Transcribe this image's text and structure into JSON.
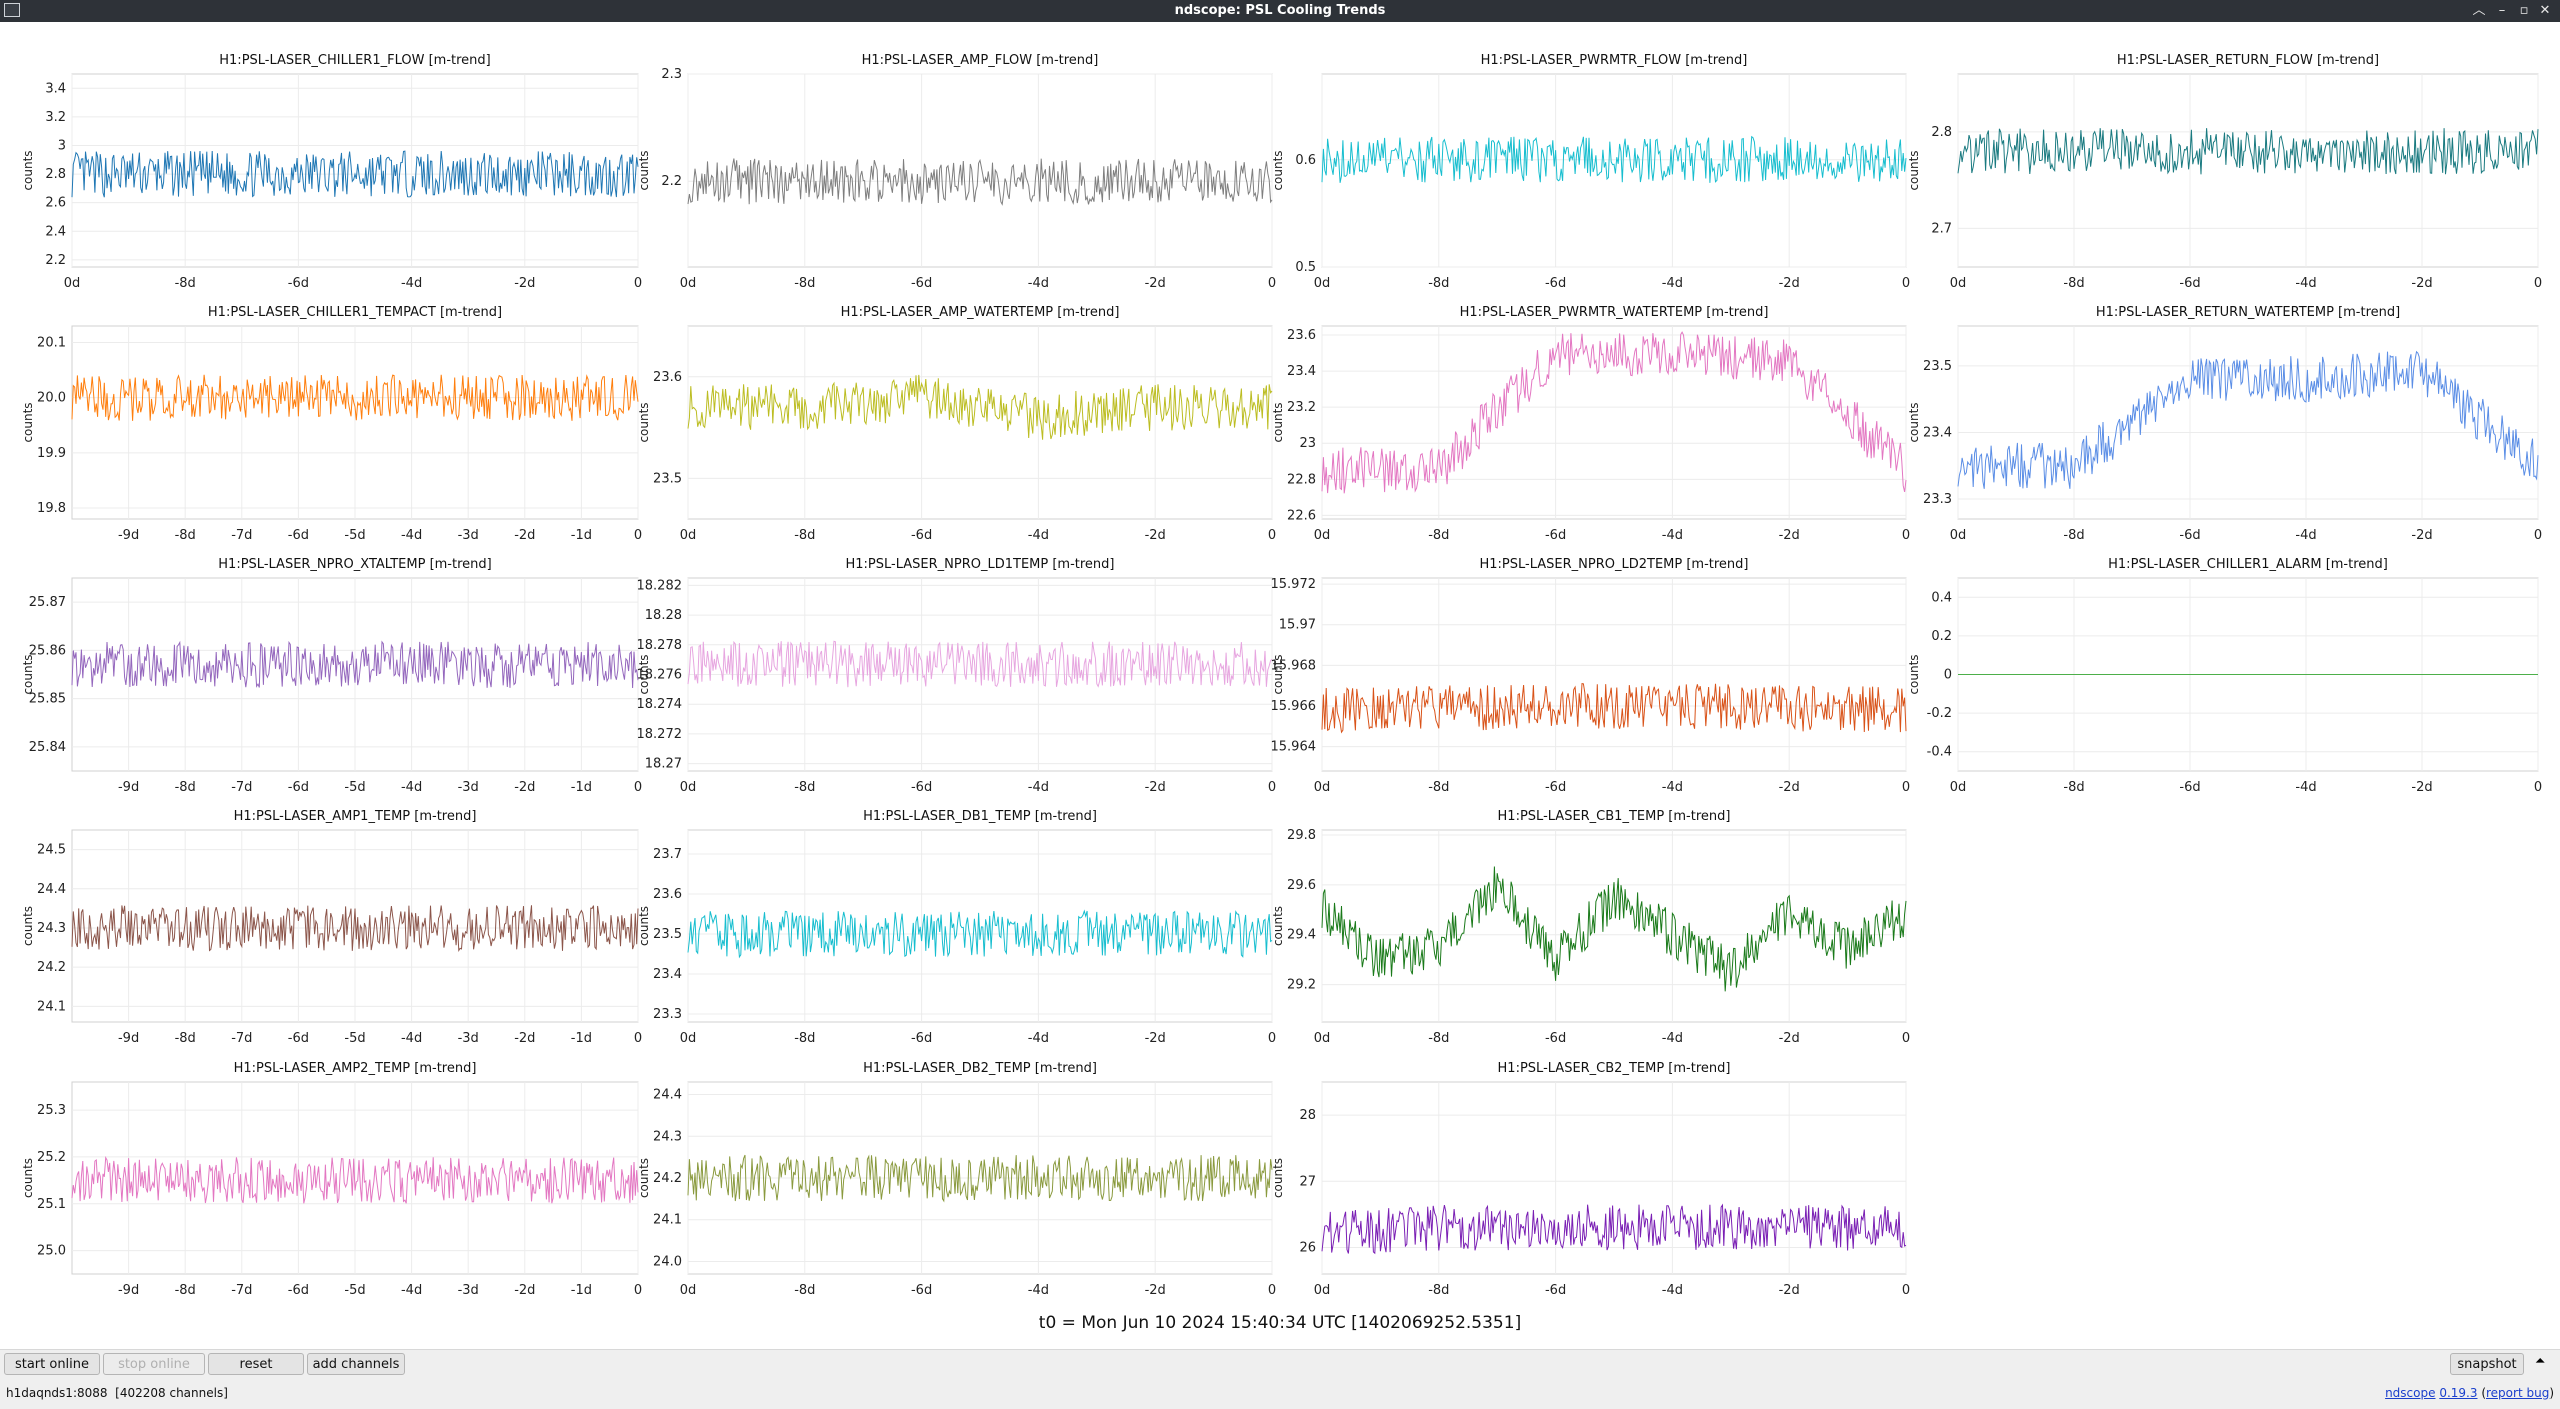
{
  "window": {
    "title": "ndscope: PSL Cooling Trends"
  },
  "footer": {
    "t0_text": "t0 = Mon Jun 10 2024 15:40:34 UTC [1402069252.5351]"
  },
  "toolbar": {
    "start_online": "start online",
    "stop_online": "stop online",
    "reset": "reset",
    "add_channels": "add channels",
    "snapshot": "snapshot"
  },
  "status": {
    "server": "h1daqnds1:8088",
    "channels": "[402208 channels]",
    "app_name": "ndscope",
    "version": "0.19.3",
    "report_bug": "report bug"
  },
  "chart_data": [
    {
      "type": "line",
      "title": "H1:PSL-LASER_CHILLER1_FLOW [m-trend]",
      "ylabel": "counts",
      "color": "#1f77b4",
      "x_ticks": [
        "0d",
        "-8d",
        "-6d",
        "-4d",
        "-2d",
        "0"
      ],
      "y_ticks": [
        "3.4",
        "3.2",
        "3",
        "2.8",
        "2.6",
        "2.4",
        "2.2"
      ],
      "ylim": [
        2.15,
        3.5
      ],
      "x": [
        -10,
        -8,
        -6,
        -4,
        -2,
        0
      ],
      "series": [
        {
          "values": [
            2.8,
            2.8,
            2.8,
            2.8,
            2.8,
            2.8
          ]
        }
      ]
    },
    {
      "type": "line",
      "title": "H1:PSL-LASER_AMP_FLOW [m-trend]",
      "ylabel": "counts",
      "color": "#7f7f7f",
      "x_ticks": [
        "0d",
        "-8d",
        "-6d",
        "-4d",
        "-2d",
        "0"
      ],
      "y_ticks": [
        "2.3",
        "2.2"
      ],
      "ylim": [
        2.12,
        2.3
      ],
      "x": [
        -10,
        -8,
        -6,
        -4,
        -2,
        0
      ],
      "series": [
        {
          "values": [
            2.2,
            2.2,
            2.2,
            2.2,
            2.2,
            2.2
          ]
        }
      ]
    },
    {
      "type": "line",
      "title": "H1:PSL-LASER_PWRMTR_FLOW [m-trend]",
      "ylabel": "counts",
      "color": "#17becf",
      "x_ticks": [
        "0d",
        "-8d",
        "-6d",
        "-4d",
        "-2d",
        "0"
      ],
      "y_ticks": [
        "0.6",
        "0.5"
      ],
      "ylim": [
        0.5,
        0.68
      ],
      "x": [
        -10,
        -8,
        -6,
        -4,
        -2,
        0
      ],
      "series": [
        {
          "values": [
            0.6,
            0.6,
            0.6,
            0.6,
            0.6,
            0.6
          ]
        }
      ]
    },
    {
      "type": "line",
      "title": "H1:PSL-LASER_RETURN_FLOW [m-trend]",
      "ylabel": "counts",
      "color": "#1a7a80",
      "x_ticks": [
        "0d",
        "-8d",
        "-6d",
        "-4d",
        "-2d",
        "0"
      ],
      "y_ticks": [
        "2.8",
        "2.7"
      ],
      "ylim": [
        2.66,
        2.86
      ],
      "x": [
        -10,
        -8,
        -6,
        -4,
        -2,
        0
      ],
      "series": [
        {
          "values": [
            2.78,
            2.78,
            2.78,
            2.78,
            2.78,
            2.78
          ]
        }
      ]
    },
    {
      "type": "line",
      "title": "H1:PSL-LASER_CHILLER1_TEMPACT [m-trend]",
      "ylabel": "counts",
      "color": "#ff7f0e",
      "x_ticks": [
        "-9d",
        "-8d",
        "-7d",
        "-6d",
        "-5d",
        "-4d",
        "-3d",
        "-2d",
        "-1d",
        "0"
      ],
      "y_ticks": [
        "20.1",
        "20.0",
        "19.9",
        "19.8"
      ],
      "ylim": [
        19.78,
        20.13
      ],
      "x": [
        -10,
        -8,
        -6,
        -4,
        -2,
        0
      ],
      "series": [
        {
          "values": [
            20.0,
            20.0,
            20.0,
            20.0,
            20.0,
            20.0
          ]
        }
      ]
    },
    {
      "type": "line",
      "title": "H1:PSL-LASER_AMP_WATERTEMP [m-trend]",
      "ylabel": "counts",
      "color": "#bcbd22",
      "x_ticks": [
        "0d",
        "-8d",
        "-6d",
        "-4d",
        "-2d",
        "0"
      ],
      "y_ticks": [
        "23.6",
        "23.5"
      ],
      "ylim": [
        23.46,
        23.65
      ],
      "x": [
        -10,
        -8,
        -6,
        -4,
        -2,
        0
      ],
      "series": [
        {
          "values": [
            23.57,
            23.57,
            23.58,
            23.56,
            23.57,
            23.57
          ]
        }
      ]
    },
    {
      "type": "line",
      "title": "H1:PSL-LASER_PWRMTR_WATERTEMP [m-trend]",
      "ylabel": "counts",
      "color": "#e377c2",
      "x_ticks": [
        "0d",
        "-8d",
        "-6d",
        "-4d",
        "-2d",
        "0"
      ],
      "y_ticks": [
        "23.6",
        "23.4",
        "23.2",
        "23",
        "22.8",
        "22.6"
      ],
      "ylim": [
        22.58,
        23.65
      ],
      "x": [
        -10,
        -8,
        -6,
        -4,
        -2,
        0
      ],
      "series": [
        {
          "values": [
            22.85,
            22.85,
            23.5,
            23.5,
            23.45,
            22.85
          ]
        }
      ]
    },
    {
      "type": "line",
      "title": "H1:PSL-LASER_RETURN_WATERTEMP [m-trend]",
      "ylabel": "counts",
      "color": "#5b8ee6",
      "x_ticks": [
        "0d",
        "-8d",
        "-6d",
        "-4d",
        "-2d",
        "0"
      ],
      "y_ticks": [
        "23.5",
        "23.4",
        "23.3"
      ],
      "ylim": [
        23.27,
        23.56
      ],
      "x": [
        -10,
        -8,
        -6,
        -4,
        -2,
        0
      ],
      "series": [
        {
          "values": [
            23.35,
            23.35,
            23.48,
            23.48,
            23.49,
            23.35
          ]
        }
      ]
    },
    {
      "type": "line",
      "title": "H1:PSL-LASER_NPRO_XTALTEMP [m-trend]",
      "ylabel": "counts",
      "color": "#9467bd",
      "x_ticks": [
        "-9d",
        "-8d",
        "-7d",
        "-6d",
        "-5d",
        "-4d",
        "-3d",
        "-2d",
        "-1d",
        "0"
      ],
      "y_ticks": [
        "25.87",
        "25.86",
        "25.85",
        "25.84"
      ],
      "ylim": [
        25.835,
        25.875
      ],
      "x": [
        -10,
        -8,
        -6,
        -4,
        -2,
        0
      ],
      "series": [
        {
          "values": [
            25.857,
            25.857,
            25.857,
            25.857,
            25.857,
            25.857
          ]
        }
      ]
    },
    {
      "type": "line",
      "title": "H1:PSL-LASER_NPRO_LD1TEMP [m-trend]",
      "ylabel": "counts",
      "color": "#e7a6e0",
      "x_ticks": [
        "0d",
        "-8d",
        "-6d",
        "-4d",
        "-2d",
        "0"
      ],
      "y_ticks": [
        "18.282",
        "18.28",
        "18.278",
        "18.276",
        "18.274",
        "18.272",
        "18.27"
      ],
      "ylim": [
        18.2695,
        18.2825
      ],
      "x": [
        -10,
        -8,
        -6,
        -4,
        -2,
        0
      ],
      "series": [
        {
          "values": [
            18.2767,
            18.2767,
            18.2767,
            18.2767,
            18.2767,
            18.2767
          ]
        }
      ]
    },
    {
      "type": "line",
      "title": "H1:PSL-LASER_NPRO_LD2TEMP [m-trend]",
      "ylabel": "counts",
      "color": "#d95319",
      "x_ticks": [
        "0d",
        "-8d",
        "-6d",
        "-4d",
        "-2d",
        "0"
      ],
      "y_ticks": [
        "15.972",
        "15.97",
        "15.968",
        "15.966",
        "15.964"
      ],
      "ylim": [
        15.9628,
        15.9723
      ],
      "x": [
        -10,
        -8,
        -6,
        -4,
        -2,
        0
      ],
      "series": [
        {
          "values": [
            15.9658,
            15.9659,
            15.966,
            15.966,
            15.9659,
            15.9658
          ]
        }
      ]
    },
    {
      "type": "line",
      "title": "H1:PSL-LASER_CHILLER1_ALARM [m-trend]",
      "ylabel": "counts",
      "color": "#4daf4a",
      "x_ticks": [
        "0d",
        "-8d",
        "-6d",
        "-4d",
        "-2d",
        "0"
      ],
      "y_ticks": [
        "0.4",
        "0.2",
        "0",
        "-0.2",
        "-0.4"
      ],
      "ylim": [
        -0.5,
        0.5
      ],
      "x": [
        -10,
        -8,
        -6,
        -4,
        -2,
        0
      ],
      "series": [
        {
          "values": [
            0,
            0,
            0,
            0,
            0,
            0
          ]
        }
      ]
    },
    {
      "type": "line",
      "title": "H1:PSL-LASER_AMP1_TEMP [m-trend]",
      "ylabel": "counts",
      "color": "#8c564b",
      "x_ticks": [
        "-9d",
        "-8d",
        "-7d",
        "-6d",
        "-5d",
        "-4d",
        "-3d",
        "-2d",
        "-1d",
        "0"
      ],
      "y_ticks": [
        "24.5",
        "24.4",
        "24.3",
        "24.2",
        "24.1"
      ],
      "ylim": [
        24.06,
        24.55
      ],
      "x": [
        -10,
        -8,
        -6,
        -4,
        -2,
        0
      ],
      "series": [
        {
          "values": [
            24.3,
            24.3,
            24.3,
            24.3,
            24.3,
            24.3
          ]
        }
      ]
    },
    {
      "type": "line",
      "title": "H1:PSL-LASER_DB1_TEMP [m-trend]",
      "ylabel": "counts",
      "color": "#17becf",
      "x_ticks": [
        "0d",
        "-8d",
        "-6d",
        "-4d",
        "-2d",
        "0"
      ],
      "y_ticks": [
        "23.7",
        "23.6",
        "23.5",
        "23.4",
        "23.3"
      ],
      "ylim": [
        23.28,
        23.76
      ],
      "x": [
        -10,
        -8,
        -6,
        -4,
        -2,
        0
      ],
      "series": [
        {
          "values": [
            23.5,
            23.5,
            23.5,
            23.5,
            23.5,
            23.5
          ]
        }
      ]
    },
    {
      "type": "line",
      "title": "H1:PSL-LASER_CB1_TEMP [m-trend]",
      "ylabel": "counts",
      "color": "#1a7a1a",
      "x_ticks": [
        "0d",
        "-8d",
        "-6d",
        "-4d",
        "-2d",
        "0"
      ],
      "y_ticks": [
        "29.8",
        "29.6",
        "29.4",
        "29.2"
      ],
      "ylim": [
        29.05,
        29.82
      ],
      "x": [
        -10,
        -9,
        -8,
        -7,
        -6,
        -5,
        -4,
        -3,
        -2,
        -1,
        0
      ],
      "series": [
        {
          "values": [
            29.5,
            29.3,
            29.35,
            29.6,
            29.3,
            29.55,
            29.4,
            29.25,
            29.5,
            29.35,
            29.48
          ]
        }
      ]
    },
    {
      "type": "line",
      "title": "H1:PSL-LASER_AMP2_TEMP [m-trend]",
      "ylabel": "counts",
      "color": "#e377c2",
      "x_ticks": [
        "-9d",
        "-8d",
        "-7d",
        "-6d",
        "-5d",
        "-4d",
        "-3d",
        "-2d",
        "-1d",
        "0"
      ],
      "y_ticks": [
        "25.3",
        "25.2",
        "25.1",
        "25.0"
      ],
      "ylim": [
        24.95,
        25.36
      ],
      "x": [
        -10,
        -8,
        -6,
        -4,
        -2,
        0
      ],
      "series": [
        {
          "values": [
            25.15,
            25.15,
            25.15,
            25.15,
            25.15,
            25.15
          ]
        }
      ]
    },
    {
      "type": "line",
      "title": "H1:PSL-LASER_DB2_TEMP [m-trend]",
      "ylabel": "counts",
      "color": "#8a9a3e",
      "x_ticks": [
        "0d",
        "-8d",
        "-6d",
        "-4d",
        "-2d",
        "0"
      ],
      "y_ticks": [
        "24.4",
        "24.3",
        "24.2",
        "24.1",
        "24.0"
      ],
      "ylim": [
        23.97,
        24.43
      ],
      "x": [
        -10,
        -8,
        -6,
        -4,
        -2,
        0
      ],
      "series": [
        {
          "values": [
            24.2,
            24.2,
            24.2,
            24.2,
            24.2,
            24.2
          ]
        }
      ]
    },
    {
      "type": "line",
      "title": "H1:PSL-LASER_CB2_TEMP [m-trend]",
      "ylabel": "counts",
      "color": "#7a1fb4",
      "x_ticks": [
        "0d",
        "-8d",
        "-6d",
        "-4d",
        "-2d",
        "0"
      ],
      "y_ticks": [
        "28",
        "27",
        "26"
      ],
      "ylim": [
        25.6,
        28.5
      ],
      "x": [
        -10,
        -8,
        -6,
        -4,
        -2,
        0
      ],
      "series": [
        {
          "values": [
            26.2,
            26.3,
            26.3,
            26.3,
            26.3,
            26.3
          ]
        }
      ]
    }
  ]
}
